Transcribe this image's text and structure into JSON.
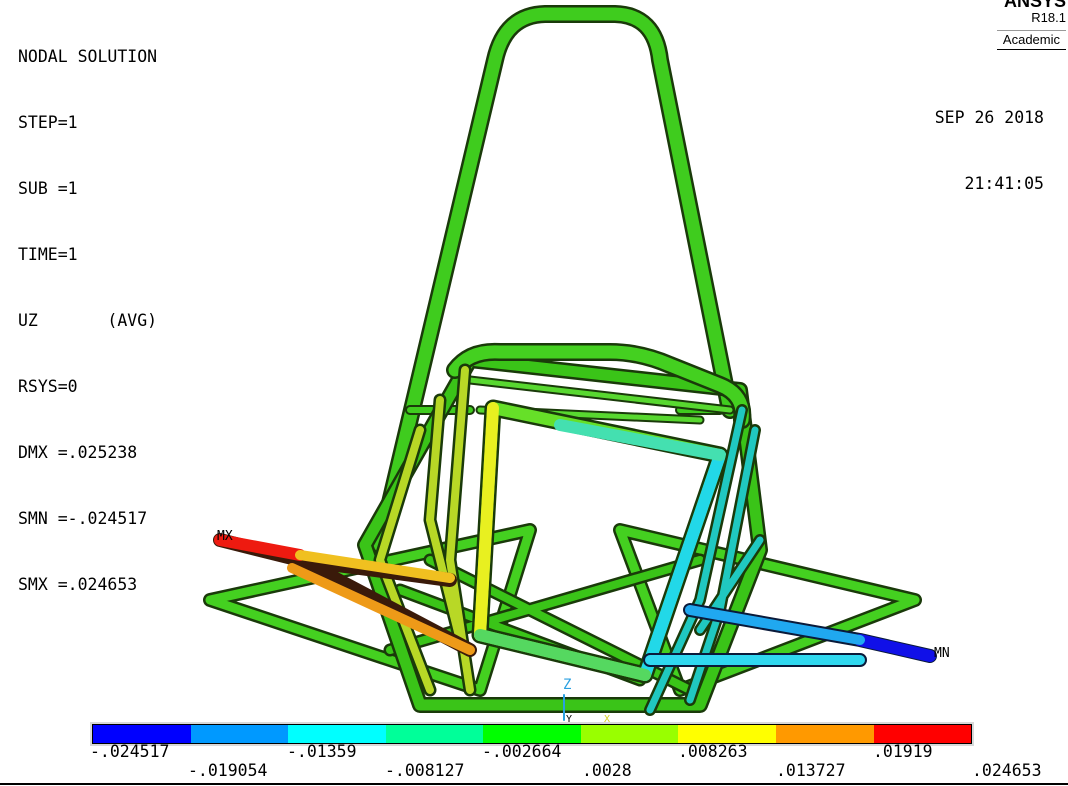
{
  "header": {
    "title": "NODAL SOLUTION",
    "lines": [
      "STEP=1",
      "SUB =1",
      "TIME=1",
      "UZ       (AVG)",
      "RSYS=0",
      "DMX =.025238",
      "SMN =-.024517",
      "SMX =.024653"
    ]
  },
  "brand": {
    "logo": "ANSYS",
    "version": "R18.1",
    "edition": "Academic"
  },
  "timestamp": {
    "date": "SEP 26 2018",
    "time": "21:41:05"
  },
  "markers": {
    "max": "MX",
    "min": "MN",
    "axis_z": "Z",
    "axis_y": "Y",
    "axis_x": "X"
  },
  "legend": {
    "colors": [
      "#0000ff",
      "#0099ff",
      "#00ffff",
      "#00ff99",
      "#00ff00",
      "#99ff00",
      "#ffff00",
      "#ff9900",
      "#ff0000"
    ],
    "upper_labels": [
      "-.024517",
      "-.01359",
      "-.002664",
      ".008263",
      ".01919"
    ],
    "lower_labels": [
      "-.019054",
      "-.008127",
      ".0028",
      ".013727",
      ".024653"
    ]
  }
}
